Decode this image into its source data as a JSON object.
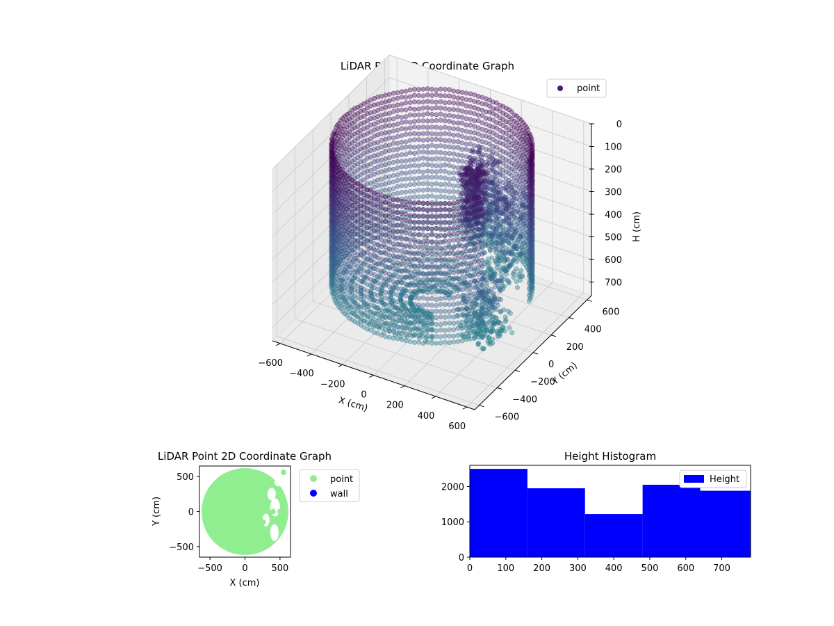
{
  "figure": {
    "background": "#ffffff"
  },
  "chart_data": [
    {
      "type": "scatter",
      "projection": "3d",
      "title": "LiDAR Point 3D Coordinate Graph",
      "xlabel": "X (cm)",
      "ylabel": "Y (cm)",
      "zlabel": "H (cm)",
      "xlim": [
        -650,
        650
      ],
      "ylim": [
        -650,
        650
      ],
      "zlim": [
        0,
        760
      ],
      "z_inverted": true,
      "xticks": [
        -600,
        -400,
        -200,
        0,
        200,
        400,
        600
      ],
      "yticks": [
        -600,
        -400,
        -200,
        0,
        200,
        400,
        600
      ],
      "zticks": [
        0,
        100,
        200,
        300,
        400,
        500,
        600,
        700
      ],
      "legend": {
        "placement": "upper-right",
        "entries": [
          "point"
        ]
      },
      "colormap": "viridis",
      "marker_alpha": 0.4,
      "colors": {
        "dark": "#440154",
        "mid": "#3b528b",
        "teal": "#21918c",
        "legend_marker": "#481a6c"
      },
      "series": [
        {
          "name": "point",
          "structure": "cylindrical wall scan plus obstacle clusters",
          "wall": {
            "radius": 560,
            "arc_from_deg": 15,
            "arc_to_deg": 330,
            "h_range": [
              0,
              620
            ],
            "h_step": 28,
            "angle_step_deg": 2.5
          },
          "floor": {
            "radius_range": [
              0,
              560
            ],
            "h": 700
          },
          "clusters": [
            {
              "x": 200,
              "y": 120,
              "h_range": [
                100,
                330
              ],
              "spread": 60
            },
            {
              "x": 60,
              "y": 440,
              "h_range": [
                200,
                600
              ],
              "spread": 90
            },
            {
              "x": 300,
              "y": 300,
              "h_range": [
                250,
                650
              ],
              "spread": 100
            },
            {
              "x": 420,
              "y": -150,
              "h_range": [
                450,
                700
              ],
              "spread": 120
            }
          ]
        }
      ]
    },
    {
      "type": "scatter",
      "title": "LiDAR Point 2D Coordinate Graph",
      "xlabel": "X (cm)",
      "ylabel": "Y (cm)",
      "xlim": [
        -650,
        650
      ],
      "ylim": [
        -650,
        650
      ],
      "xticks": [
        -500,
        0,
        500
      ],
      "yticks": [
        -500,
        0,
        500
      ],
      "legend": {
        "placement": "outside-right",
        "entries": [
          "point",
          "wall"
        ]
      },
      "series": [
        {
          "name": "point",
          "color": "#90ee90",
          "shape": "filled disc, radius 620, open toward +x"
        },
        {
          "name": "wall",
          "color": "#0000ff",
          "points": []
        }
      ]
    },
    {
      "type": "bar",
      "title": "Height Histogram",
      "xlim": [
        0,
        780
      ],
      "ylim": [
        0,
        2600
      ],
      "xticks": [
        0,
        100,
        200,
        300,
        400,
        500,
        600,
        700
      ],
      "yticks": [
        0,
        1000,
        2000
      ],
      "legend": {
        "placement": "upper-right",
        "entries": [
          "Height"
        ]
      },
      "bin_edges": [
        0,
        160,
        320,
        480,
        640,
        780
      ],
      "series": [
        {
          "name": "Height",
          "color": "#0000ff",
          "values": [
            2500,
            1950,
            1220,
            2050,
            1880
          ]
        }
      ]
    }
  ]
}
